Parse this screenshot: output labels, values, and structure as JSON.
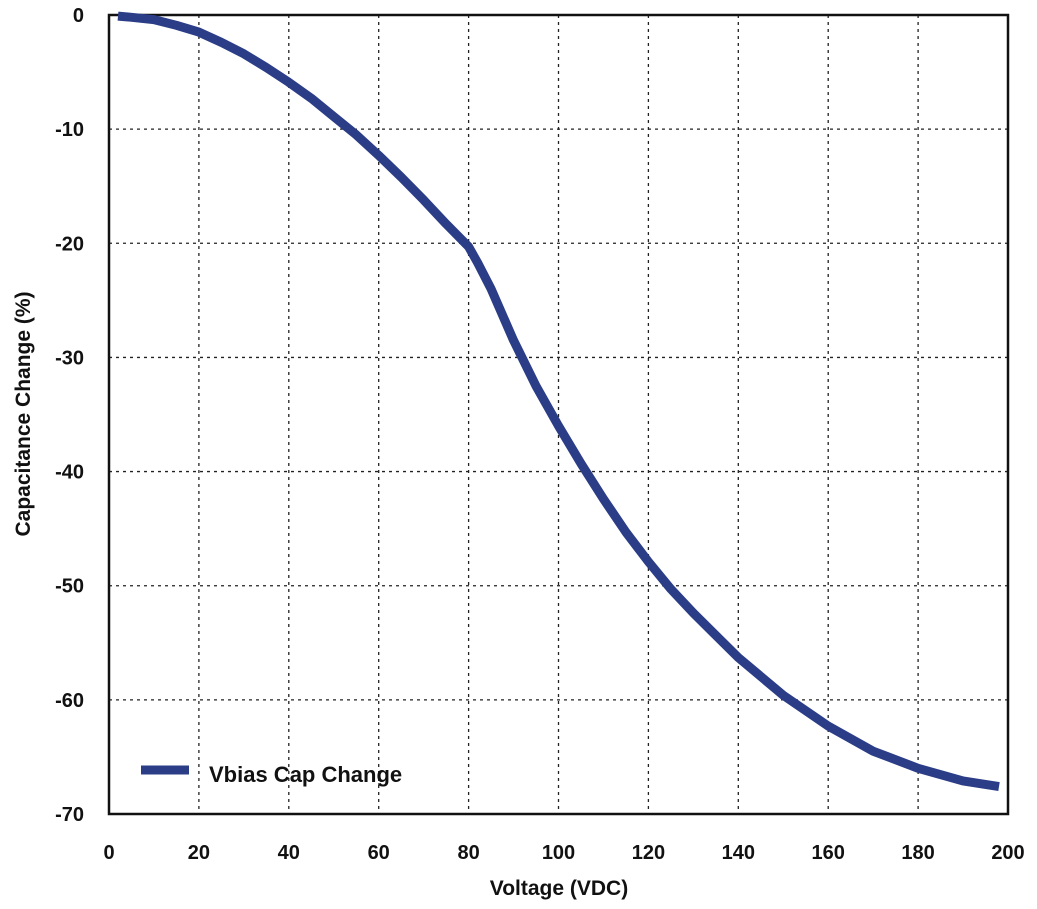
{
  "chart_data": {
    "type": "line",
    "title": "",
    "xlabel": "Voltage (VDC)",
    "ylabel": "Capacitance Change (%)",
    "xlim": [
      0,
      200
    ],
    "ylim": [
      -70,
      0
    ],
    "x_ticks": [
      0,
      20,
      40,
      60,
      80,
      100,
      120,
      140,
      160,
      180,
      200
    ],
    "y_ticks": [
      0,
      -10,
      -20,
      -30,
      -40,
      -50,
      -60,
      -70
    ],
    "x_tick_labels": [
      "0",
      "20",
      "40",
      "60",
      "80",
      "100",
      "120",
      "140",
      "160",
      "180",
      "200"
    ],
    "y_tick_labels": [
      "0",
      "-10",
      "-20",
      "-30",
      "-40",
      "-50",
      "-60",
      "-70"
    ],
    "grid": true,
    "legend_position": "bottom-left",
    "series": [
      {
        "name": "Vbias Cap Change",
        "color": "#2b3d87",
        "x": [
          2,
          5,
          10,
          15,
          20,
          25,
          30,
          35,
          40,
          45,
          50,
          55,
          60,
          65,
          70,
          75,
          80,
          82,
          85,
          90,
          95,
          100,
          105,
          110,
          115,
          120,
          125,
          130,
          140,
          150,
          160,
          170,
          180,
          190,
          198
        ],
        "y": [
          -0.1,
          -0.2,
          -0.4,
          -0.9,
          -1.5,
          -2.4,
          -3.4,
          -4.6,
          -5.9,
          -7.3,
          -8.9,
          -10.5,
          -12.3,
          -14.2,
          -16.2,
          -18.3,
          -20.3,
          -21.7,
          -24.0,
          -28.5,
          -32.5,
          -36.0,
          -39.3,
          -42.4,
          -45.3,
          -47.9,
          -50.3,
          -52.4,
          -56.3,
          -59.6,
          -62.3,
          -64.5,
          -66.0,
          -67.1,
          -67.6
        ]
      }
    ]
  }
}
